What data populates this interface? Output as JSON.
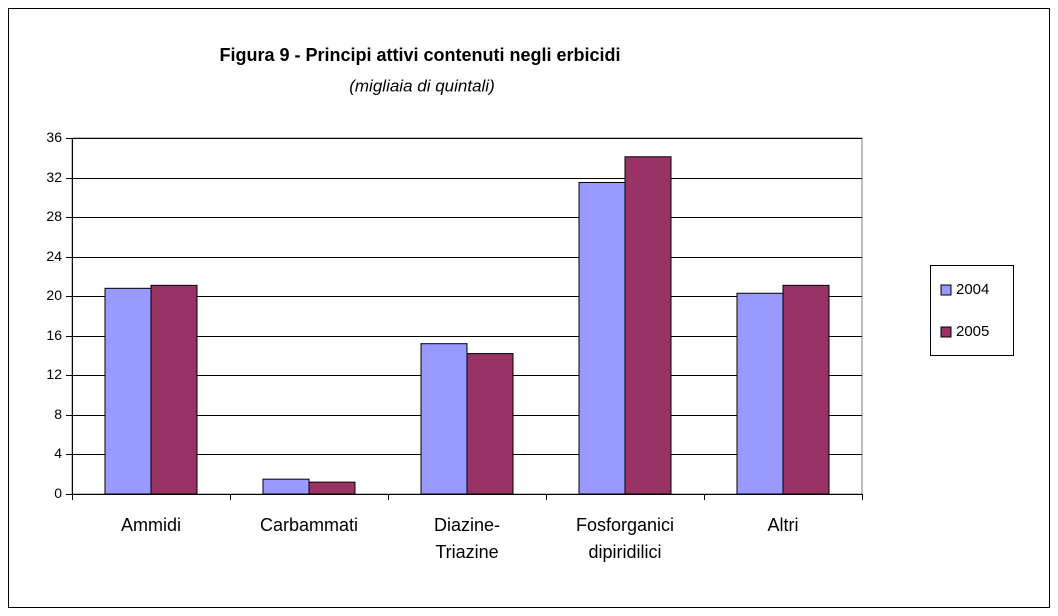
{
  "chart_data": {
    "type": "bar",
    "title": "Figura 9 - Principi attivi contenuti negli erbicidi",
    "subtitle": "(migliaia di quintali)",
    "categories": [
      "Ammidi",
      "Carbammati",
      "Diazine-\nTriazine",
      "Fosforganici\ndipiridilici",
      "Altri"
    ],
    "series": [
      {
        "name": "2004",
        "color": "#9999ff",
        "values": [
          20.8,
          1.5,
          15.2,
          31.5,
          20.3
        ]
      },
      {
        "name": "2005",
        "color": "#993366",
        "values": [
          21.1,
          1.2,
          14.2,
          34.1,
          21.1
        ]
      }
    ],
    "ylim": [
      0,
      36
    ],
    "yticks": [
      0,
      4,
      8,
      12,
      16,
      20,
      24,
      28,
      32,
      36
    ],
    "grid": true,
    "legend": "right"
  }
}
